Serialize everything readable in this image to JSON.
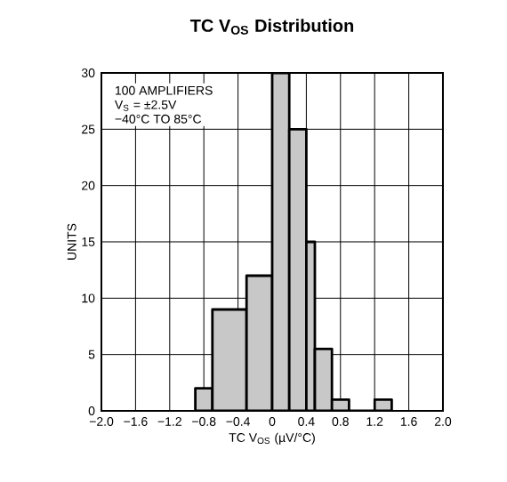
{
  "chart_data": {
    "type": "histogram",
    "title": "TC V$_{OS}$ Distribution",
    "xlabel": "TC V$_{OS}$ (µV/°C)",
    "ylabel": "UNITS",
    "annotations": [
      "100 AMPLIFIERS",
      "V$_{S}$ = ±2.5V",
      "−40°C TO 85°C"
    ],
    "bins": [
      -0.9,
      -0.7,
      -0.3,
      0,
      0.2,
      0.4,
      0.5,
      0.7,
      0.9,
      1.2,
      1.4
    ],
    "values": [
      2,
      9,
      12,
      30,
      25,
      15,
      5.5,
      1,
      0,
      1
    ],
    "color": "#c8c8c8",
    "xlim": [
      -2,
      2
    ],
    "xticks": [
      {
        "value": -2,
        "label": "−2.0"
      },
      {
        "value": -1.6,
        "label": "−1.6"
      },
      {
        "value": -1.2,
        "label": "−1.2"
      },
      {
        "value": -0.8,
        "label": "−0.8"
      },
      {
        "value": -0.4,
        "label": "−0.4"
      },
      0,
      0.4,
      0.8,
      1.2,
      1.6,
      {
        "value": 2,
        "label": "2.0"
      }
    ],
    "ylim": [
      0,
      30
    ],
    "yticks": [
      0,
      5,
      10,
      15,
      20,
      25,
      30
    ],
    "grid": true
  }
}
